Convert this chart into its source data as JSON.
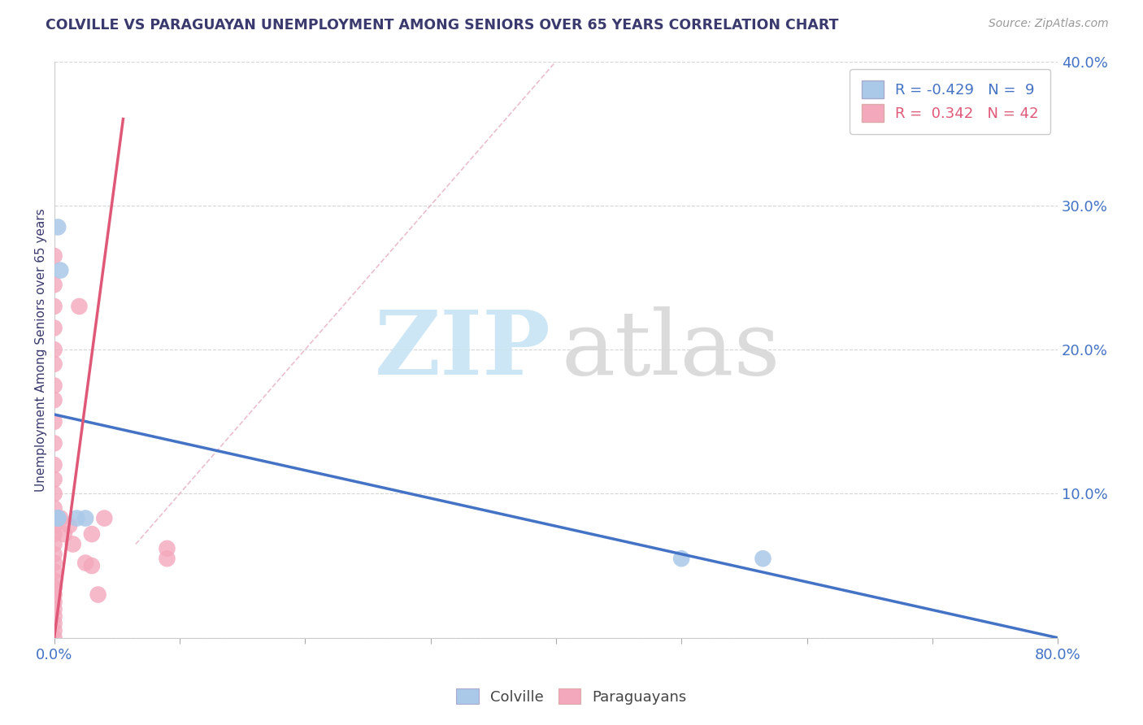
{
  "title": "COLVILLE VS PARAGUAYAN UNEMPLOYMENT AMONG SENIORS OVER 65 YEARS CORRELATION CHART",
  "source": "Source: ZipAtlas.com",
  "ylabel": "Unemployment Among Seniors over 65 years",
  "xlim": [
    0.0,
    0.8
  ],
  "ylim": [
    0.0,
    0.4
  ],
  "colville_color": "#aac8e8",
  "paraguayan_color": "#f4a8bc",
  "colville_R": -0.429,
  "colville_N": 9,
  "paraguayan_R": 0.342,
  "paraguayan_N": 42,
  "background_color": "#ffffff",
  "grid_color": "#cccccc",
  "title_color": "#3a3a6e",
  "colville_line_color": "#4472c4",
  "paraguayan_line_color": "#e05878",
  "ref_line_color": "#e8b8c8",
  "watermark_zip_color": "#c8e4f4",
  "watermark_atlas_color": "#d8d8d8",
  "colville_points_x": [
    0.003,
    0.003,
    0.003,
    0.003,
    0.005,
    0.018,
    0.5,
    0.565,
    0.025
  ],
  "colville_points_y": [
    0.285,
    0.083,
    0.083,
    0.083,
    0.255,
    0.083,
    0.055,
    0.055,
    0.083
  ],
  "paraguayan_points_x": [
    0.0,
    0.0,
    0.0,
    0.0,
    0.0,
    0.0,
    0.0,
    0.0,
    0.0,
    0.0,
    0.0,
    0.0,
    0.0,
    0.0,
    0.0,
    0.0,
    0.0,
    0.0,
    0.0,
    0.0,
    0.0,
    0.0,
    0.0,
    0.0,
    0.0,
    0.0,
    0.0,
    0.0,
    0.0,
    0.0,
    0.005,
    0.008,
    0.012,
    0.015,
    0.02,
    0.025,
    0.03,
    0.03,
    0.035,
    0.04,
    0.09,
    0.09
  ],
  "paraguayan_points_y": [
    0.265,
    0.245,
    0.23,
    0.215,
    0.2,
    0.19,
    0.175,
    0.165,
    0.15,
    0.135,
    0.12,
    0.11,
    0.1,
    0.09,
    0.083,
    0.078,
    0.072,
    0.065,
    0.058,
    0.052,
    0.046,
    0.04,
    0.035,
    0.03,
    0.025,
    0.02,
    0.015,
    0.01,
    0.005,
    0.0,
    0.083,
    0.072,
    0.078,
    0.065,
    0.23,
    0.052,
    0.072,
    0.05,
    0.03,
    0.083,
    0.062,
    0.055
  ],
  "blue_line_x": [
    0.0,
    0.8
  ],
  "blue_line_y": [
    0.155,
    0.0
  ],
  "pink_line_x": [
    0.0,
    0.055
  ],
  "pink_line_y": [
    0.0,
    0.36
  ],
  "ref_line_x": [
    0.065,
    0.4
  ],
  "ref_line_y": [
    0.065,
    0.4
  ]
}
